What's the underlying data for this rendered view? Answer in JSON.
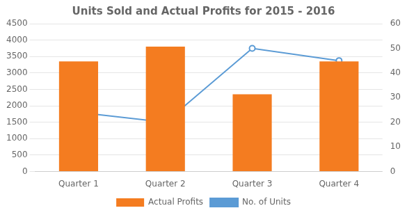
{
  "chart_data": {
    "type": "bar",
    "title": "Units Sold and Actual Profits for 2015 - 2016",
    "categories": [
      "Quarter 1",
      "Quarter 2",
      "Quarter 3",
      "Quarter 4"
    ],
    "series": [
      {
        "name": "Actual Profits",
        "type": "bar",
        "color": "#F47C20",
        "values": [
          3350,
          3800,
          2350,
          3350
        ]
      },
      {
        "name": "No. of Units",
        "type": "line",
        "color": "#5B9BD5",
        "marker": "circle",
        "axis": "y2",
        "values": [
          24,
          20,
          50,
          45
        ]
      }
    ],
    "ylim": [
      0,
      4500
    ],
    "yticks": [
      0,
      500,
      1000,
      1500,
      2000,
      2500,
      3000,
      3500,
      4000,
      4500
    ],
    "y2lim": [
      0,
      60
    ],
    "y2ticks": [
      0,
      10,
      20,
      30,
      40,
      50,
      60
    ],
    "grid": true,
    "legend": "bottom"
  }
}
